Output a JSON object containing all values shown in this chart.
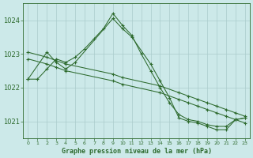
{
  "title": "Graphe pression niveau de la mer (hPa)",
  "background_color": "#cce9e9",
  "grid_color": "#aacccc",
  "line_color": "#2d6a2d",
  "marker": "+",
  "xlim": [
    -0.5,
    23.5
  ],
  "ylim": [
    1020.5,
    1024.5
  ],
  "yticks": [
    1021,
    1022,
    1023,
    1024
  ],
  "xticks": [
    0,
    1,
    2,
    3,
    4,
    5,
    6,
    7,
    8,
    9,
    10,
    11,
    12,
    13,
    14,
    15,
    16,
    17,
    18,
    19,
    20,
    21,
    22,
    23
  ],
  "series": [
    {
      "x": [
        0,
        1,
        2,
        3,
        4,
        5,
        6,
        7,
        8,
        9,
        10,
        11,
        12,
        13,
        14,
        15,
        16,
        17,
        18,
        19,
        20,
        21,
        22,
        23
      ],
      "y": [
        1022.25,
        1022.25,
        1022.55,
        1022.85,
        1022.75,
        1022.9,
        1023.15,
        1023.45,
        1023.75,
        1024.2,
        1023.85,
        1023.55,
        1023.0,
        1022.5,
        1022.0,
        1021.55,
        1021.2,
        1021.05,
        1021.0,
        1020.9,
        1020.85,
        1020.85,
        1021.05,
        1021.1
      ]
    },
    {
      "x": [
        0,
        2,
        3,
        4,
        9,
        10,
        14,
        16,
        17,
        18,
        19,
        20,
        21,
        22,
        23
      ],
      "y": [
        1023.05,
        1022.9,
        1022.8,
        1022.7,
        1022.4,
        1022.3,
        1022.05,
        1021.85,
        1021.75,
        1021.65,
        1021.55,
        1021.45,
        1021.35,
        1021.25,
        1021.15
      ]
    },
    {
      "x": [
        0,
        2,
        3,
        4,
        9,
        10,
        14,
        16,
        17,
        18,
        19,
        20,
        21,
        22,
        23
      ],
      "y": [
        1022.85,
        1022.7,
        1022.6,
        1022.5,
        1022.2,
        1022.1,
        1021.85,
        1021.65,
        1021.55,
        1021.45,
        1021.35,
        1021.25,
        1021.15,
        1021.05,
        1020.95
      ]
    },
    {
      "x": [
        0,
        2,
        3,
        4,
        5,
        9,
        10,
        11,
        13,
        14,
        15,
        16,
        17,
        18,
        19,
        20,
        21,
        22,
        23
      ],
      "y": [
        1022.25,
        1023.05,
        1022.75,
        1022.55,
        1022.75,
        1024.05,
        1023.75,
        1023.5,
        1022.7,
        1022.2,
        1021.7,
        1021.1,
        1021.0,
        1020.95,
        1020.85,
        1020.75,
        1020.75,
        1021.05,
        1021.1
      ]
    }
  ]
}
